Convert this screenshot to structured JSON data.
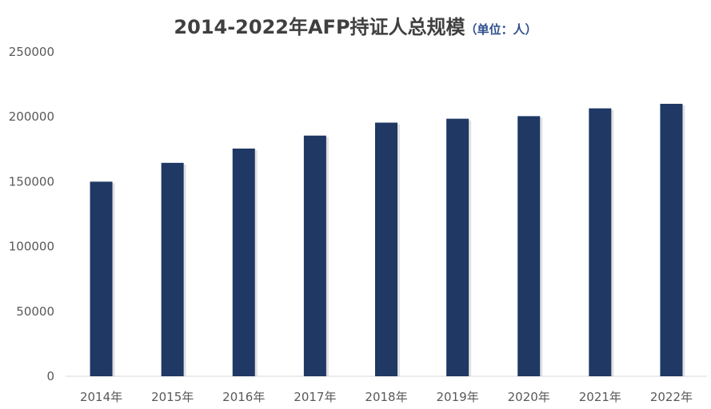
{
  "chart_data": {
    "type": "bar",
    "title": "2014-2022年AFP持证人总规模",
    "subtitle": "（单位：人）",
    "categories": [
      "2014年",
      "2015年",
      "2016年",
      "2017年",
      "2018年",
      "2019年",
      "2020年",
      "2021年",
      "2022年"
    ],
    "values": [
      150000,
      164500,
      175500,
      185500,
      195500,
      198500,
      200500,
      206500,
      210000
    ],
    "ylim": [
      0,
      250000
    ],
    "yticks": [
      "0",
      "50000",
      "100000",
      "150000",
      "200000",
      "250000"
    ],
    "xlabel": "",
    "ylabel": "",
    "grid": false,
    "bar_color": "#1f3864",
    "axis_color": "#d9d9d9",
    "text_color": "#595959"
  }
}
